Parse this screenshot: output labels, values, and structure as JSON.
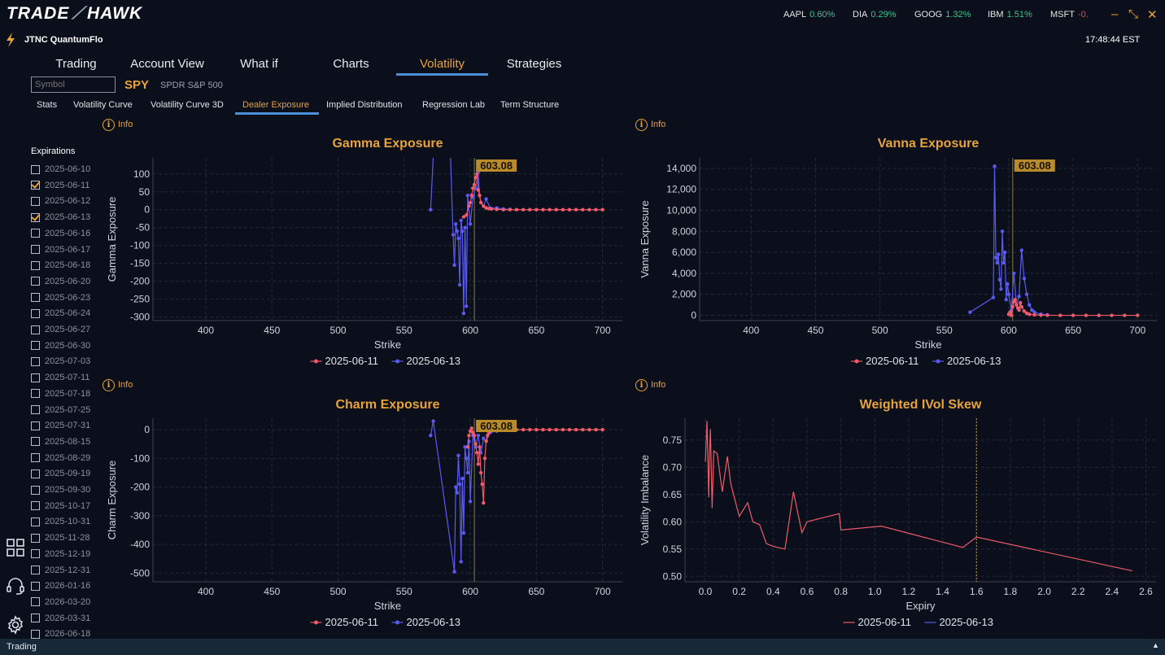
{
  "app": {
    "logo_left": "TRADE",
    "logo_right": "HAWK",
    "account": "JTNC QuantumFlo",
    "clock": "17:48:44 EST"
  },
  "tickers": [
    {
      "symbol": "AAPL",
      "change": "0.60%"
    },
    {
      "symbol": "DIA",
      "change": "0.29%"
    },
    {
      "symbol": "GOOG",
      "change": "1.32%"
    },
    {
      "symbol": "IBM",
      "change": "1.51%"
    },
    {
      "symbol": "MSFT",
      "change": "-0."
    }
  ],
  "window_controls": {
    "minimize": "–",
    "restore": "⤡",
    "close": "✕"
  },
  "main_tabs": [
    "Trading",
    "Account View",
    "What if",
    "Charts",
    "Volatility",
    "Strategies"
  ],
  "active_main_tab": "Volatility",
  "symbol": {
    "placeholder": "Symbol",
    "ticker": "SPY",
    "name": "SPDR S&P 500"
  },
  "sub_tabs": [
    "Stats",
    "Volatility Curve",
    "Volatility Curve 3D",
    "Dealer Exposure",
    "Implied Distribution",
    "Regression Lab",
    "Term Structure"
  ],
  "active_sub_tab": "Dealer Exposure",
  "info_label": "Info",
  "expirations": {
    "title": "Expirations",
    "items": [
      {
        "date": "2025-06-10",
        "checked": false
      },
      {
        "date": "2025-06-11",
        "checked": true
      },
      {
        "date": "2025-06-12",
        "checked": false
      },
      {
        "date": "2025-06-13",
        "checked": true
      },
      {
        "date": "2025-06-16",
        "checked": false
      },
      {
        "date": "2025-06-17",
        "checked": false
      },
      {
        "date": "2025-06-18",
        "checked": false
      },
      {
        "date": "2025-06-20",
        "checked": false
      },
      {
        "date": "2025-06-23",
        "checked": false
      },
      {
        "date": "2025-06-24",
        "checked": false
      },
      {
        "date": "2025-06-27",
        "checked": false
      },
      {
        "date": "2025-06-30",
        "checked": false
      },
      {
        "date": "2025-07-03",
        "checked": false
      },
      {
        "date": "2025-07-11",
        "checked": false
      },
      {
        "date": "2025-07-18",
        "checked": false
      },
      {
        "date": "2025-07-25",
        "checked": false
      },
      {
        "date": "2025-07-31",
        "checked": false
      },
      {
        "date": "2025-08-15",
        "checked": false
      },
      {
        "date": "2025-08-29",
        "checked": false
      },
      {
        "date": "2025-09-19",
        "checked": false
      },
      {
        "date": "2025-09-30",
        "checked": false
      },
      {
        "date": "2025-10-17",
        "checked": false
      },
      {
        "date": "2025-10-31",
        "checked": false
      },
      {
        "date": "2025-11-28",
        "checked": false
      },
      {
        "date": "2025-12-19",
        "checked": false
      },
      {
        "date": "2025-12-31",
        "checked": false
      },
      {
        "date": "2026-01-16",
        "checked": false
      },
      {
        "date": "2026-03-20",
        "checked": false
      },
      {
        "date": "2026-03-31",
        "checked": false
      },
      {
        "date": "2026-06-18",
        "checked": false
      }
    ]
  },
  "statusbar": {
    "label": "Trading",
    "arrow": "▲"
  },
  "colors": {
    "accent": "#e8a33a",
    "series_a": "#f05a6a",
    "series_b": "#5a5af0",
    "tab_underline": "#4a8fd8"
  },
  "chart_data": [
    {
      "type": "scatter",
      "title": "Gamma Exposure",
      "xlabel": "Strike",
      "ylabel": "Gamma Exposure",
      "xlim": [
        360,
        715
      ],
      "ylim": [
        -310,
        145
      ],
      "xticks": [
        400,
        450,
        500,
        550,
        600,
        650,
        700
      ],
      "yticks": [
        100,
        50,
        0,
        -50,
        -100,
        -150,
        -200,
        -250,
        -300
      ],
      "yticklabels": [
        "100",
        "50",
        "0",
        "-50",
        "-100",
        "-150",
        "-200",
        "-250",
        "-300"
      ],
      "spot": 603.08,
      "spot_label": "603.08",
      "legend_position": "bottom",
      "series": [
        {
          "name": "2025-06-11",
          "x": [
            595,
            597,
            599,
            600,
            601,
            602,
            603,
            604,
            605,
            606,
            607,
            608,
            610,
            612,
            614,
            616,
            620,
            625,
            630,
            635,
            640,
            645,
            650,
            655,
            660,
            665,
            670,
            675,
            680,
            685,
            690,
            695,
            700
          ],
          "y": [
            -20,
            -15,
            10,
            20,
            40,
            60,
            70,
            90,
            100,
            55,
            40,
            20,
            10,
            5,
            3,
            2,
            1,
            0,
            0,
            0,
            0,
            0,
            0,
            0,
            0,
            0,
            0,
            0,
            0,
            0,
            0,
            0,
            0
          ]
        },
        {
          "name": "2025-06-13",
          "x": [
            570,
            572,
            585,
            587,
            588,
            589,
            590,
            591,
            592,
            593,
            594,
            595,
            596,
            597,
            598,
            600,
            602,
            604,
            606,
            607,
            608,
            610,
            612,
            615,
            620,
            625,
            630
          ],
          "y": [
            0,
            150,
            150,
            -70,
            -155,
            -40,
            -60,
            -80,
            -210,
            -30,
            -60,
            -290,
            -50,
            -270,
            40,
            -40,
            35,
            60,
            105,
            40,
            20,
            10,
            30,
            5,
            5,
            2,
            1
          ]
        }
      ]
    },
    {
      "type": "scatter",
      "title": "Vanna Exposure",
      "xlabel": "Strike",
      "ylabel": "Vanna Exposure",
      "xlim": [
        360,
        715
      ],
      "ylim": [
        -500,
        15000
      ],
      "xticks": [
        400,
        450,
        500,
        550,
        600,
        650,
        700
      ],
      "yticks": [
        14000,
        12000,
        10000,
        8000,
        6000,
        4000,
        2000,
        0
      ],
      "yticklabels": [
        "14,000",
        "12,000",
        "10,000",
        "8,000",
        "6,000",
        "4,000",
        "2,000",
        "0"
      ],
      "spot": 603.08,
      "spot_label": "603.08",
      "legend_position": "bottom",
      "series": [
        {
          "name": "2025-06-11",
          "x": [
            600,
            601,
            602,
            603,
            604,
            605,
            606,
            607,
            608,
            609,
            610,
            612,
            614,
            616,
            620,
            625,
            630,
            640,
            650,
            660,
            670,
            680,
            690,
            700
          ],
          "y": [
            100,
            300,
            0,
            800,
            1300,
            1500,
            1000,
            700,
            500,
            1200,
            800,
            400,
            200,
            100,
            50,
            20,
            10,
            0,
            0,
            0,
            0,
            0,
            0,
            0
          ]
        },
        {
          "name": "2025-06-13",
          "x": [
            570,
            588,
            589,
            590,
            591,
            592,
            593,
            594,
            595,
            596,
            597,
            598,
            599,
            600,
            602,
            604,
            606,
            608,
            610,
            612,
            614,
            616,
            618,
            620,
            625,
            630
          ],
          "y": [
            300,
            1700,
            14200,
            5500,
            5000,
            5800,
            3400,
            2500,
            8000,
            5000,
            6000,
            1500,
            3000,
            2000,
            500,
            4000,
            1000,
            1800,
            6200,
            3500,
            2000,
            1000,
            500,
            300,
            100,
            50
          ]
        }
      ]
    },
    {
      "type": "scatter",
      "title": "Charm Exposure",
      "xlabel": "Strike",
      "ylabel": "Charm Exposure",
      "xlim": [
        360,
        715
      ],
      "ylim": [
        -530,
        40
      ],
      "xticks": [
        400,
        450,
        500,
        550,
        600,
        650,
        700
      ],
      "yticks": [
        0,
        -100,
        -200,
        -300,
        -400,
        -500
      ],
      "yticklabels": [
        "0",
        "-100",
        "-200",
        "-300",
        "-400",
        "-500"
      ],
      "spot": 603.08,
      "spot_label": "603.08",
      "legend_position": "bottom",
      "series": [
        {
          "name": "2025-06-11",
          "x": [
            598,
            599,
            600,
            601,
            602,
            603,
            604,
            605,
            606,
            607,
            608,
            609,
            610,
            611,
            612,
            613,
            614,
            615,
            620,
            625,
            630,
            635,
            640,
            645,
            650,
            655,
            660,
            665,
            670,
            675,
            680,
            685,
            690,
            695,
            700
          ],
          "y": [
            -60,
            -20,
            -5,
            5,
            -10,
            -20,
            -50,
            -80,
            -120,
            -60,
            -150,
            -190,
            -255,
            -100,
            -40,
            -20,
            -10,
            -5,
            0,
            0,
            0,
            0,
            0,
            0,
            0,
            0,
            0,
            0,
            0,
            0,
            0,
            0,
            0,
            0,
            0
          ]
        },
        {
          "name": "2025-06-13",
          "x": [
            570,
            572,
            588,
            589,
            590,
            591,
            592,
            593,
            594,
            595,
            596,
            597,
            598,
            599,
            600,
            602,
            604,
            606,
            608,
            610,
            612,
            615,
            620,
            625
          ],
          "y": [
            -20,
            30,
            -495,
            -200,
            -220,
            -90,
            -190,
            -460,
            -170,
            -360,
            -60,
            -100,
            -150,
            -40,
            -250,
            -20,
            -60,
            -20,
            -80,
            -30,
            -40,
            -10,
            -5,
            0
          ]
        }
      ]
    },
    {
      "type": "line",
      "title": "Weighted IVol Skew",
      "xlabel": "Expiry",
      "ylabel": "Volatility Imbalance",
      "xlim": [
        -0.12,
        2.66
      ],
      "ylim": [
        0.49,
        0.79
      ],
      "xticks": [
        0.0,
        0.2,
        0.4,
        0.6,
        0.8,
        1.0,
        1.2,
        1.4,
        1.6,
        1.8,
        2.0,
        2.2,
        2.4,
        2.6
      ],
      "xticklabels": [
        "0.0",
        "0.2",
        "0.4",
        "0.6",
        "0.8",
        "1.0",
        "1.2",
        "1.4",
        "1.6",
        "1.8",
        "2.0",
        "2.2",
        "2.4",
        "2.6"
      ],
      "yticks": [
        0.75,
        0.7,
        0.65,
        0.6,
        0.55,
        0.5
      ],
      "yticklabels": [
        "0.75",
        "0.70",
        "0.65",
        "0.60",
        "0.55",
        "0.50"
      ],
      "vline": 1.6,
      "legend_position": "bottom",
      "series": [
        {
          "name": "2025-06-11",
          "x": [
            0.0,
            0.01,
            0.02,
            0.025,
            0.03,
            0.04,
            0.05,
            0.07,
            0.1,
            0.13,
            0.15,
            0.2,
            0.25,
            0.28,
            0.32,
            0.36,
            0.4,
            0.47,
            0.52,
            0.57,
            0.6,
            0.79,
            0.8,
            1.04,
            1.52,
            1.6,
            2.52
          ],
          "y": [
            0.71,
            0.785,
            0.645,
            0.73,
            0.77,
            0.625,
            0.73,
            0.725,
            0.655,
            0.72,
            0.67,
            0.61,
            0.635,
            0.6,
            0.595,
            0.56,
            0.555,
            0.55,
            0.655,
            0.58,
            0.6,
            0.615,
            0.585,
            0.592,
            0.553,
            0.572,
            0.51
          ]
        }
      ]
    }
  ]
}
